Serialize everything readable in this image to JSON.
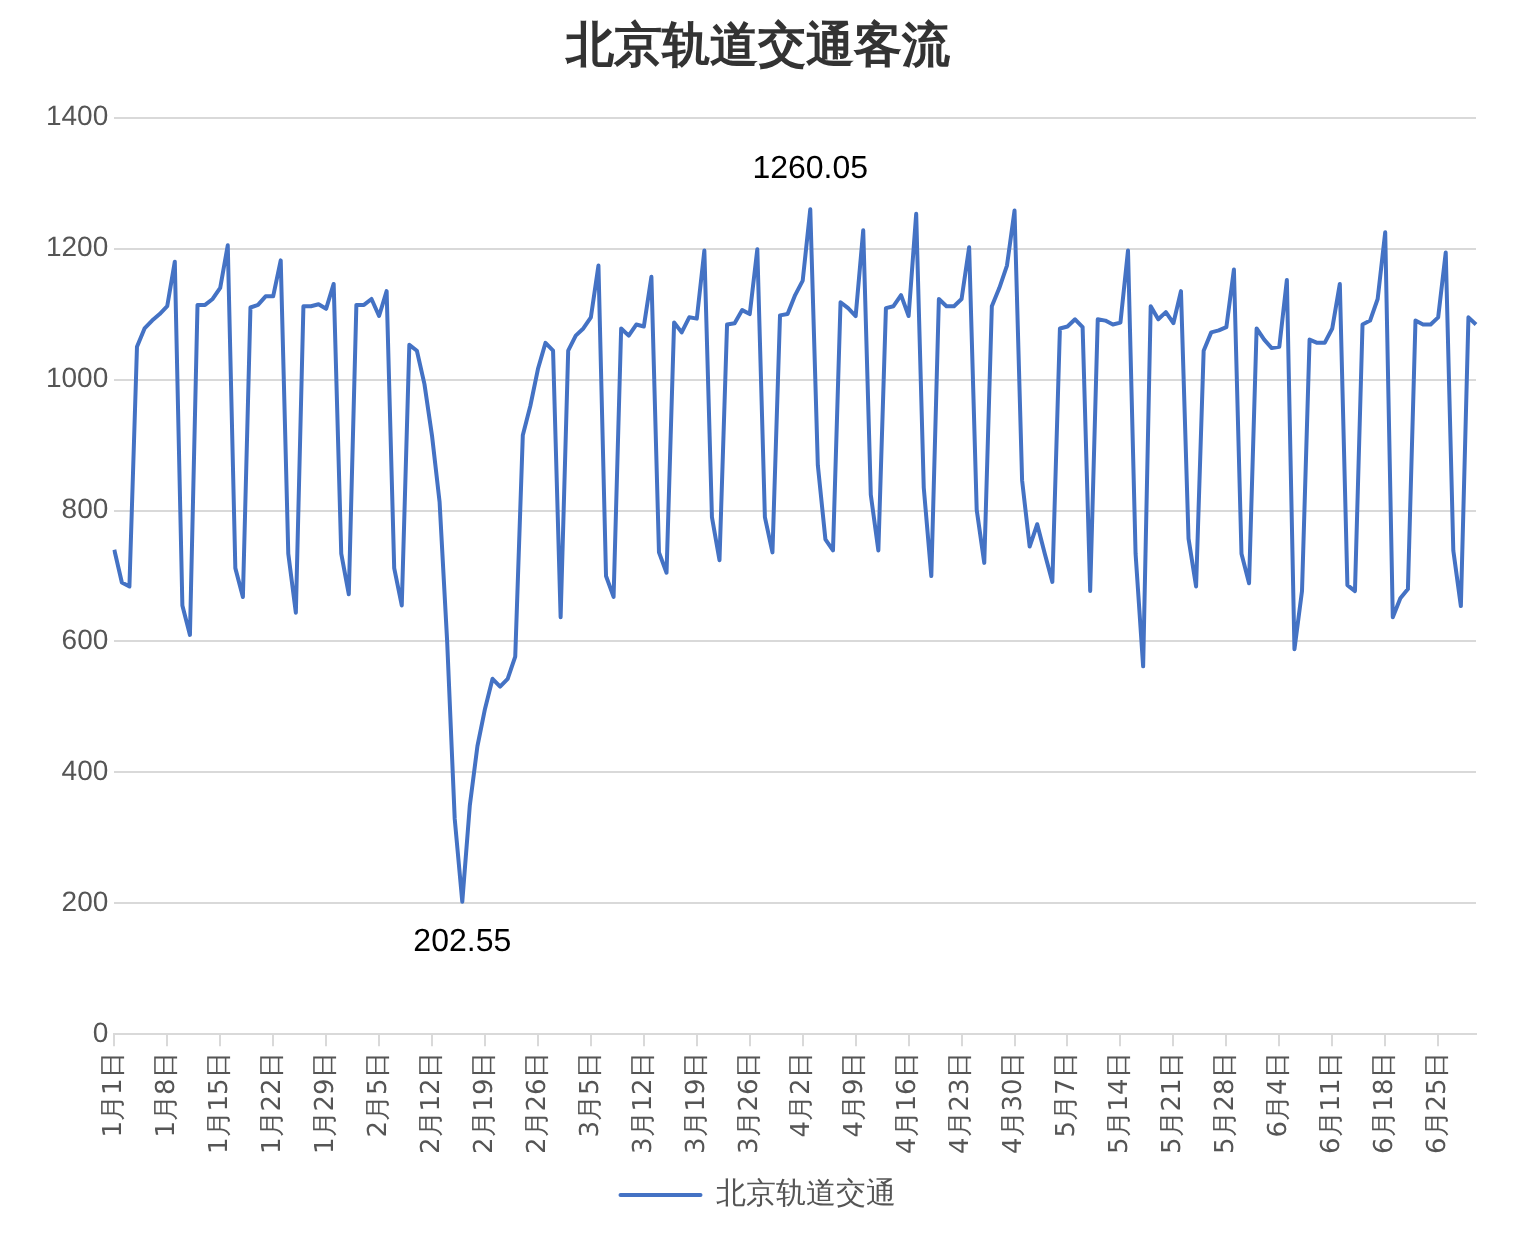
{
  "chart_data": {
    "type": "line",
    "title": "北京轨道交通客流",
    "categories": [
      "1月1日",
      null,
      null,
      null,
      null,
      null,
      null,
      "1月8日",
      null,
      null,
      null,
      null,
      null,
      null,
      "1月15日",
      null,
      null,
      null,
      null,
      null,
      null,
      "1月22日",
      null,
      null,
      null,
      null,
      null,
      null,
      "1月29日",
      null,
      null,
      null,
      null,
      null,
      null,
      "2月5日",
      null,
      null,
      null,
      null,
      null,
      null,
      "2月12日",
      null,
      null,
      null,
      null,
      null,
      null,
      "2月19日",
      null,
      null,
      null,
      null,
      null,
      null,
      "2月26日",
      null,
      null,
      null,
      null,
      null,
      null,
      "3月5日",
      null,
      null,
      null,
      null,
      null,
      null,
      "3月12日",
      null,
      null,
      null,
      null,
      null,
      null,
      "3月19日",
      null,
      null,
      null,
      null,
      null,
      null,
      "3月26日",
      null,
      null,
      null,
      null,
      null,
      null,
      "4月2日",
      null,
      null,
      null,
      null,
      null,
      null,
      "4月9日",
      null,
      null,
      null,
      null,
      null,
      null,
      "4月16日",
      null,
      null,
      null,
      null,
      null,
      null,
      "4月23日",
      null,
      null,
      null,
      null,
      null,
      null,
      "4月30日",
      null,
      null,
      null,
      null,
      null,
      null,
      "5月7日",
      null,
      null,
      null,
      null,
      null,
      null,
      "5月14日",
      null,
      null,
      null,
      null,
      null,
      null,
      "5月21日",
      null,
      null,
      null,
      null,
      null,
      null,
      "5月28日",
      null,
      null,
      null,
      null,
      null,
      null,
      "6月4日",
      null,
      null,
      null,
      null,
      null,
      null,
      "6月11日",
      null,
      null,
      null,
      null,
      null,
      null,
      "6月18日",
      null,
      null,
      null,
      null,
      null,
      null,
      "6月25日",
      null,
      null,
      null,
      null,
      null
    ],
    "series": [
      {
        "name": "北京轨道交通",
        "color": "#4472c4",
        "values": [
          740,
          690,
          684,
          1050,
          1078,
          1090,
          1100,
          1112,
          1180,
          655,
          610,
          1114,
          1114,
          1123,
          1140,
          1205,
          712,
          668,
          1110,
          1114,
          1127,
          1127,
          1182,
          734,
          644,
          1112,
          1112,
          1115,
          1108,
          1146,
          734,
          672,
          1114,
          1114,
          1123,
          1097,
          1135,
          712,
          655,
          1053,
          1044,
          993,
          914,
          813,
          600,
          329,
          202.55,
          350,
          440,
          497,
          543,
          531,
          543,
          577,
          915,
          960,
          1016,
          1056,
          1044,
          637,
          1044,
          1067,
          1078,
          1095,
          1174,
          700,
          668,
          1078,
          1067,
          1084,
          1081,
          1157,
          736,
          705,
          1087,
          1072,
          1095,
          1093,
          1197,
          790,
          724,
          1084,
          1086,
          1106,
          1100,
          1199,
          790,
          736,
          1098,
          1100,
          1129,
          1151,
          1260.05,
          869,
          756,
          739,
          1118,
          1109,
          1097,
          1228,
          824,
          739,
          1109,
          1112,
          1129,
          1097,
          1253,
          835,
          700,
          1123,
          1112,
          1112,
          1123,
          1202,
          801,
          720,
          1112,
          1140,
          1174,
          1258,
          846,
          745,
          779,
          734,
          691,
          1078,
          1081,
          1092,
          1080,
          677,
          1092,
          1090,
          1084,
          1087,
          1197,
          734,
          562,
          1112,
          1092,
          1103,
          1086,
          1135,
          757,
          684,
          1044,
          1072,
          1075,
          1080,
          1168,
          734,
          689,
          1078,
          1061,
          1048,
          1050,
          1152,
          588,
          677,
          1061,
          1056,
          1056,
          1078,
          1146,
          686,
          677,
          1084,
          1090,
          1123,
          1225,
          637,
          666,
          680,
          1090,
          1084,
          1084,
          1095,
          1194,
          739,
          654,
          1095,
          1084
        ]
      }
    ],
    "ylim": [
      0,
      1400
    ],
    "yticks": [
      0,
      200,
      400,
      600,
      800,
      1000,
      1200,
      1400
    ],
    "grid": "y",
    "legend": "bottom",
    "marker": "none",
    "line_style": "solid",
    "annotations": [
      {
        "text": "202.55",
        "y": 202.55
      },
      {
        "text": "1260.05",
        "y": 1260.05
      }
    ]
  }
}
